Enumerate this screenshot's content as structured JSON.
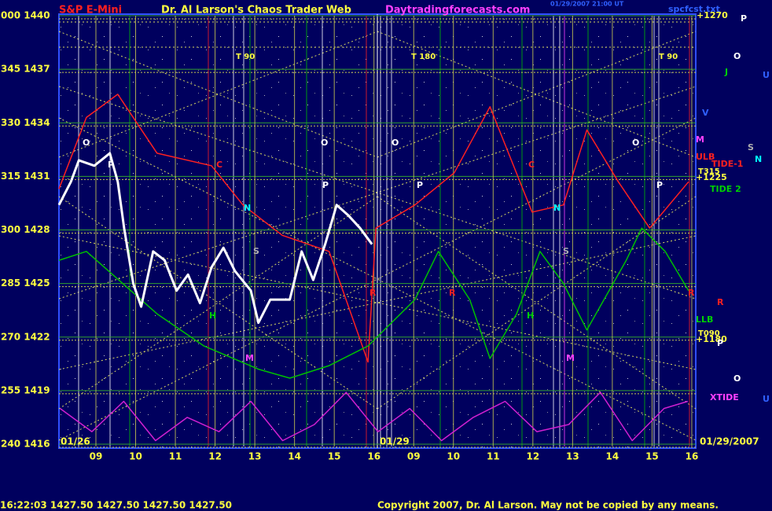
{
  "chart_data": {
    "type": "line",
    "annotations": [
      "S&P E-Mini",
      "Dr. Al Larson's Chaos Trader Web",
      "Daytradingforecasts.com",
      "spcfcst.txt",
      "01/29/2007 21:00 UT",
      "T 90",
      "T 180",
      "T 90",
      "+1270",
      "T315",
      "+1225",
      "TIDE-1",
      "ULB",
      "TIDE 2",
      "LLB",
      "T090",
      "+1180",
      "XTIDE",
      "01/26",
      "01/29",
      "01/29/2007",
      "16:22:03  1427.50 1427.50 1427.50 1427.50",
      "Copyright 2007, Dr. Al Larson. May not be copied by any means.",
      "O",
      "P",
      "O",
      "P",
      "O",
      "P",
      "O",
      "P",
      "C",
      "C",
      "N",
      "N",
      "S",
      "S",
      "R",
      "R",
      "R",
      "H",
      "H",
      "M",
      "M",
      "M",
      "P",
      "O",
      "J",
      "U",
      "V",
      "S",
      "N",
      "R",
      "P",
      "O",
      "U"
    ],
    "xlim": [
      8.07,
      24.1
    ],
    "xticks": [
      {
        "value": 9,
        "label": "09"
      },
      10,
      11,
      12,
      13,
      14,
      15,
      16,
      {
        "value": 17,
        "label": "09"
      },
      {
        "value": 18,
        "label": "10"
      },
      {
        "value": 19,
        "label": "11"
      },
      {
        "value": 20,
        "label": "12"
      },
      {
        "value": 21,
        "label": "13"
      },
      {
        "value": 22,
        "label": "14"
      },
      {
        "value": 23,
        "label": "15"
      },
      {
        "value": 24,
        "label": "16"
      }
    ],
    "ylim": [
      1416,
      1440
    ],
    "yticks": [
      {
        "value": 1440,
        "label": "000 1440"
      },
      {
        "value": 1437,
        "label": "345 1437"
      },
      {
        "value": 1434,
        "label": "330 1434"
      },
      {
        "value": 1431,
        "label": "315 1431"
      },
      {
        "value": 1428,
        "label": "300 1428"
      },
      {
        "value": 1425,
        "label": "285 1425"
      },
      {
        "value": 1422,
        "label": "270 1422"
      },
      {
        "value": 1419,
        "label": "255 1419"
      },
      {
        "value": 1416,
        "label": "240 1416"
      }
    ],
    "grid": true,
    "series": [
      {
        "color": "#ff2020",
        "x": [
          8.07,
          8.76,
          9.55,
          10.54,
          11.91,
          12.7,
          13.69,
          14.87,
          15.85,
          16.05,
          17.03,
          18.02,
          18.92,
          19.98,
          20.77,
          21.36,
          22.15,
          22.94,
          23.92
        ],
        "values": [
          1430.3,
          1434.3,
          1435.6,
          1432.3,
          1431.6,
          1429.4,
          1427.7,
          1426.8,
          1420.6,
          1428.1,
          1429.4,
          1431.2,
          1434.9,
          1429.0,
          1429.4,
          1433.6,
          1430.7,
          1428.1,
          1430.7
        ]
      },
      {
        "color": "#00c000",
        "x": [
          8.07,
          8.76,
          10.54,
          11.72,
          13.09,
          13.88,
          14.87,
          15.85,
          17.03,
          17.62,
          18.41,
          18.92,
          19.59,
          20.18,
          20.77,
          21.36,
          22.35,
          22.74,
          23.33,
          23.92
        ],
        "values": [
          1426.3,
          1426.8,
          1423.3,
          1421.5,
          1420.2,
          1419.7,
          1420.4,
          1421.5,
          1424.1,
          1426.8,
          1424.1,
          1420.8,
          1423.3,
          1426.8,
          1425.0,
          1422.4,
          1426.3,
          1428.1,
          1426.8,
          1424.6
        ]
      },
      {
        "color": "#d020d0",
        "x": [
          8.1,
          8.9,
          9.7,
          10.5,
          11.3,
          12.1,
          12.9,
          13.7,
          14.5,
          15.3,
          16.1,
          16.9,
          17.7,
          18.5,
          19.3,
          20.1,
          20.9,
          21.7,
          22.5,
          23.3,
          23.9
        ],
        "values": [
          1418.0,
          1416.7,
          1418.4,
          1416.2,
          1417.5,
          1416.7,
          1418.4,
          1416.2,
          1417.1,
          1418.9,
          1416.7,
          1418.0,
          1416.2,
          1417.5,
          1418.4,
          1416.7,
          1417.1,
          1418.9,
          1416.2,
          1418.0,
          1418.4
        ]
      },
      {
        "color": "#ffffff",
        "x": [
          8.07,
          8.37,
          8.57,
          8.96,
          9.35,
          9.55,
          9.71,
          9.94,
          10.14,
          10.44,
          10.73,
          11.03,
          11.32,
          11.62,
          11.91,
          12.21,
          12.5,
          12.9,
          13.09,
          13.39,
          13.88,
          14.18,
          14.47,
          14.77,
          15.06,
          15.36,
          15.65,
          15.95
        ],
        "values": [
          1429.4,
          1430.7,
          1431.9,
          1431.6,
          1432.3,
          1430.7,
          1428.1,
          1425.0,
          1423.7,
          1426.8,
          1426.3,
          1424.6,
          1425.5,
          1423.9,
          1425.9,
          1427.0,
          1425.7,
          1424.6,
          1422.8,
          1424.1,
          1424.1,
          1426.8,
          1425.2,
          1427.2,
          1429.4,
          1428.8,
          1428.1,
          1427.2
        ]
      }
    ]
  }
}
